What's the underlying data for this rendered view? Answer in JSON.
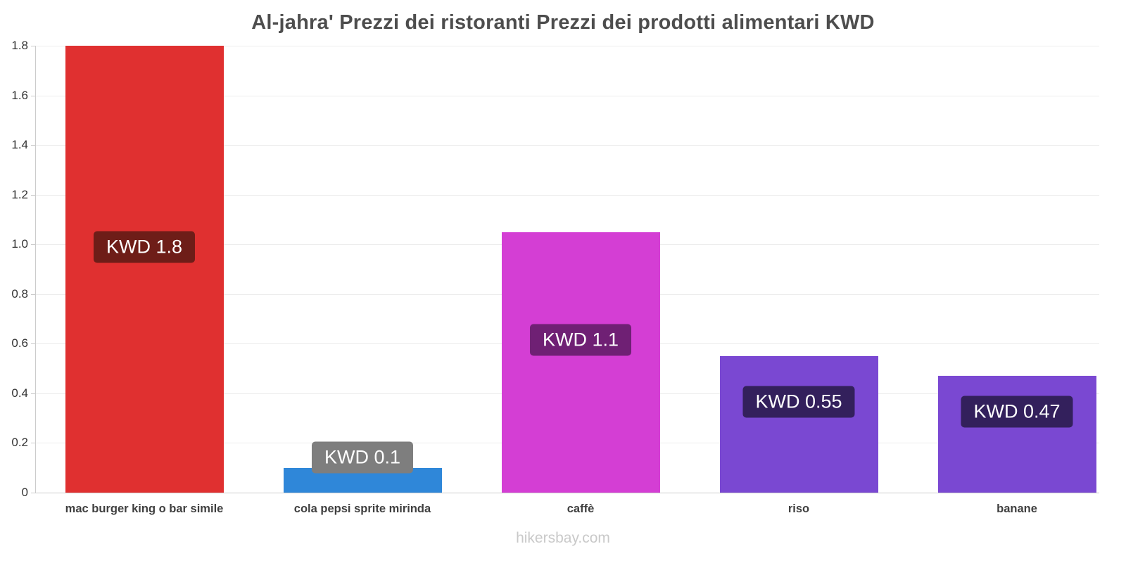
{
  "chart_data": {
    "type": "bar",
    "title": "Al-jahra' Prezzi dei ristoranti Prezzi dei prodotti alimentari KWD",
    "categories": [
      "mac burger king o bar simile",
      "cola pepsi sprite mirinda",
      "caffè",
      "riso",
      "banane"
    ],
    "values": [
      1.8,
      0.1,
      1.05,
      0.55,
      0.47
    ],
    "bar_labels": [
      "KWD 1.8",
      "KWD 0.1",
      "KWD 1.1",
      "KWD 0.55",
      "KWD 0.47"
    ],
    "bar_colors": [
      "#e03030",
      "#2f87d9",
      "#d43ed4",
      "#7a48d2",
      "#7a48d2"
    ],
    "label_bg_colors": [
      "#6e1d18",
      "#7e7e7e",
      "#6f2074",
      "#33205c",
      "#33205c"
    ],
    "label_text_color": "#ffffff",
    "xlabel": "",
    "ylabel": "",
    "ylim": [
      0,
      1.8
    ],
    "yticks": [
      0,
      0.2,
      0.4,
      0.6,
      0.8,
      1.0,
      1.2,
      1.4,
      1.6,
      1.8
    ],
    "ytick_labels": [
      "0",
      "0.2",
      "0.4",
      "0.6",
      "0.8",
      "1.0",
      "1.2",
      "1.4",
      "1.6",
      "1.8"
    ],
    "grid": true,
    "legend": false,
    "watermark": "hikersbay.com"
  }
}
